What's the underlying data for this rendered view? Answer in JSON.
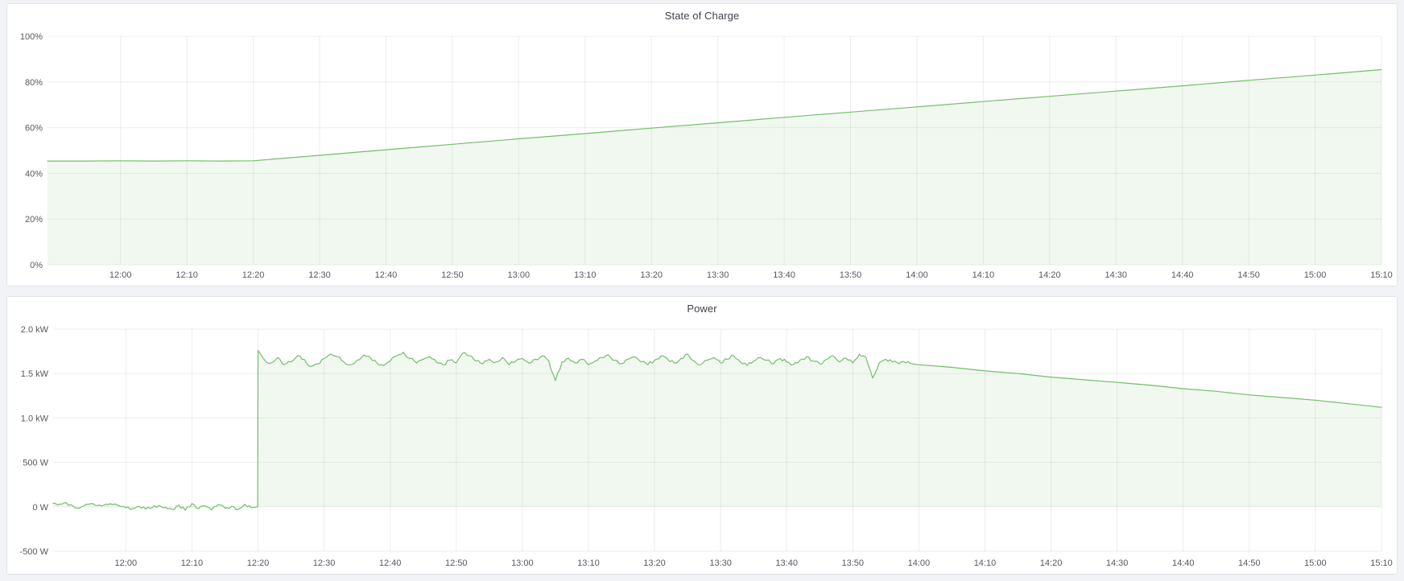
{
  "page": {
    "background": "#f2f3f6"
  },
  "colors": {
    "page_bg": "#f2f3f6",
    "panel_bg": "#ffffff",
    "panel_border": "#e2e4e9",
    "title_text": "#3f4248",
    "tick_text": "#55585e",
    "grid_line": "rgba(36,41,46,0.08)",
    "series_green": "#73BF69"
  },
  "panels": [
    {
      "id": "soc",
      "title": "State of Charge"
    },
    {
      "id": "power",
      "title": "Power"
    }
  ],
  "chart_data": [
    {
      "id": "soc",
      "type": "area",
      "title": "State of Charge",
      "xlabel": "",
      "ylabel": "",
      "x_unit": "time-of-day (minutes since 00:00)",
      "x_range_visible": [
        "11:49",
        "15:10"
      ],
      "xlim": [
        709,
        910
      ],
      "ylim": [
        0,
        100
      ],
      "grid": true,
      "legend": "none",
      "x_ticks": [
        {
          "t": 720,
          "label": "12:00"
        },
        {
          "t": 730,
          "label": "12:10"
        },
        {
          "t": 740,
          "label": "12:20"
        },
        {
          "t": 750,
          "label": "12:30"
        },
        {
          "t": 760,
          "label": "12:40"
        },
        {
          "t": 770,
          "label": "12:50"
        },
        {
          "t": 780,
          "label": "13:00"
        },
        {
          "t": 790,
          "label": "13:10"
        },
        {
          "t": 800,
          "label": "13:20"
        },
        {
          "t": 810,
          "label": "13:30"
        },
        {
          "t": 820,
          "label": "13:40"
        },
        {
          "t": 830,
          "label": "13:50"
        },
        {
          "t": 840,
          "label": "14:00"
        },
        {
          "t": 850,
          "label": "14:10"
        },
        {
          "t": 860,
          "label": "14:20"
        },
        {
          "t": 870,
          "label": "14:30"
        },
        {
          "t": 880,
          "label": "14:40"
        },
        {
          "t": 890,
          "label": "14:50"
        },
        {
          "t": 900,
          "label": "15:00"
        },
        {
          "t": 910,
          "label": "15:10"
        }
      ],
      "y_ticks": [
        {
          "v": 0,
          "label": "0%"
        },
        {
          "v": 20,
          "label": "20%"
        },
        {
          "v": 40,
          "label": "40%"
        },
        {
          "v": 60,
          "label": "60%"
        },
        {
          "v": 80,
          "label": "80%"
        },
        {
          "v": 100,
          "label": "100%"
        }
      ],
      "series": [
        {
          "name": "State of Charge",
          "color": "#73BF69",
          "fill_opacity": 0.11,
          "fill_to": 0,
          "jitter_ranges": [],
          "points": [
            [
              709,
              45.4
            ],
            [
              715,
              45.4
            ],
            [
              720,
              45.5
            ],
            [
              725,
              45.4
            ],
            [
              730,
              45.5
            ],
            [
              735,
              45.4
            ],
            [
              740,
              45.5
            ],
            [
              745,
              46.7
            ],
            [
              750,
              47.9
            ],
            [
              760,
              50.3
            ],
            [
              770,
              52.7
            ],
            [
              780,
              55.1
            ],
            [
              790,
              57.4
            ],
            [
              800,
              59.8
            ],
            [
              810,
              62.1
            ],
            [
              820,
              64.5
            ],
            [
              830,
              66.8
            ],
            [
              840,
              69.1
            ],
            [
              850,
              71.4
            ],
            [
              860,
              73.7
            ],
            [
              870,
              76.0
            ],
            [
              880,
              78.3
            ],
            [
              890,
              80.7
            ],
            [
              900,
              83.0
            ],
            [
              910,
              85.4
            ]
          ]
        }
      ]
    },
    {
      "id": "power",
      "type": "area",
      "title": "Power",
      "xlabel": "",
      "ylabel": "",
      "y_unit": "kW",
      "x_unit": "time-of-day (minutes since 00:00)",
      "x_range_visible": [
        "11:49",
        "15:10"
      ],
      "xlim": [
        709,
        910
      ],
      "ylim": [
        -0.5,
        2.0
      ],
      "grid": true,
      "legend": "none",
      "x_ticks": [
        {
          "t": 720,
          "label": "12:00"
        },
        {
          "t": 730,
          "label": "12:10"
        },
        {
          "t": 740,
          "label": "12:20"
        },
        {
          "t": 750,
          "label": "12:30"
        },
        {
          "t": 760,
          "label": "12:40"
        },
        {
          "t": 770,
          "label": "12:50"
        },
        {
          "t": 780,
          "label": "13:00"
        },
        {
          "t": 790,
          "label": "13:10"
        },
        {
          "t": 800,
          "label": "13:20"
        },
        {
          "t": 810,
          "label": "13:30"
        },
        {
          "t": 820,
          "label": "13:40"
        },
        {
          "t": 830,
          "label": "13:50"
        },
        {
          "t": 840,
          "label": "14:00"
        },
        {
          "t": 850,
          "label": "14:10"
        },
        {
          "t": 860,
          "label": "14:20"
        },
        {
          "t": 870,
          "label": "14:30"
        },
        {
          "t": 880,
          "label": "14:40"
        },
        {
          "t": 890,
          "label": "14:50"
        },
        {
          "t": 900,
          "label": "15:00"
        },
        {
          "t": 910,
          "label": "15:10"
        }
      ],
      "y_ticks": [
        {
          "v": -0.5,
          "label": "-500 W"
        },
        {
          "v": 0,
          "label": "0 W"
        },
        {
          "v": 0.5,
          "label": "500 W"
        },
        {
          "v": 1.0,
          "label": "1.0 kW"
        },
        {
          "v": 1.5,
          "label": "1.5 kW"
        },
        {
          "v": 2.0,
          "label": "2.0 kW"
        }
      ],
      "series": [
        {
          "name": "Power",
          "color": "#73BF69",
          "fill_opacity": 0.11,
          "fill_to": 0,
          "jitter_ranges": [
            [
              709,
              739.8,
              0.018
            ],
            [
              740.5,
              839,
              0.02
            ]
          ],
          "points": [
            [
              709,
              0.04
            ],
            [
              710,
              0.03
            ],
            [
              711,
              0.045
            ],
            [
              712,
              0.01
            ],
            [
              713,
              -0.015
            ],
            [
              714,
              0.03
            ],
            [
              715,
              0.035
            ],
            [
              716,
              0.02
            ],
            [
              717,
              0.03
            ],
            [
              718,
              0.025
            ],
            [
              719,
              0.01
            ],
            [
              720,
              -0.01
            ],
            [
              721,
              -0.02
            ],
            [
              722,
              0.005
            ],
            [
              723,
              -0.025
            ],
            [
              724,
              -0.01
            ],
            [
              725,
              0.015
            ],
            [
              726,
              -0.005
            ],
            [
              727,
              -0.03
            ],
            [
              728,
              0.02
            ],
            [
              729,
              -0.04
            ],
            [
              730,
              0.035
            ],
            [
              731,
              -0.02
            ],
            [
              732,
              0.01
            ],
            [
              733,
              -0.035
            ],
            [
              734,
              0.025
            ],
            [
              735,
              -0.015
            ],
            [
              736,
              0.005
            ],
            [
              737,
              -0.03
            ],
            [
              738,
              0.03
            ],
            [
              739,
              -0.01
            ],
            [
              739.95,
              0.0
            ],
            [
              740,
              1.76
            ],
            [
              741,
              1.65
            ],
            [
              742,
              1.62
            ],
            [
              743,
              1.68
            ],
            [
              744,
              1.6
            ],
            [
              745,
              1.63
            ],
            [
              746,
              1.7
            ],
            [
              747,
              1.66
            ],
            [
              748,
              1.58
            ],
            [
              749,
              1.61
            ],
            [
              750,
              1.67
            ],
            [
              751,
              1.72
            ],
            [
              752,
              1.69
            ],
            [
              753,
              1.63
            ],
            [
              754,
              1.6
            ],
            [
              755,
              1.65
            ],
            [
              756,
              1.71
            ],
            [
              757,
              1.68
            ],
            [
              758,
              1.62
            ],
            [
              759,
              1.59
            ],
            [
              760,
              1.64
            ],
            [
              761,
              1.7
            ],
            [
              762,
              1.74
            ],
            [
              763,
              1.67
            ],
            [
              764,
              1.62
            ],
            [
              765,
              1.66
            ],
            [
              766,
              1.69
            ],
            [
              767,
              1.63
            ],
            [
              768,
              1.6
            ],
            [
              769,
              1.65
            ],
            [
              770,
              1.62
            ],
            [
              771,
              1.73
            ],
            [
              772,
              1.7
            ],
            [
              773,
              1.64
            ],
            [
              774,
              1.61
            ],
            [
              775,
              1.66
            ],
            [
              776,
              1.63
            ],
            [
              777,
              1.68
            ],
            [
              778,
              1.6
            ],
            [
              779,
              1.64
            ],
            [
              780,
              1.67
            ],
            [
              781,
              1.62
            ],
            [
              782,
              1.66
            ],
            [
              783,
              1.7
            ],
            [
              784,
              1.64
            ],
            [
              785,
              1.42
            ],
            [
              786,
              1.63
            ],
            [
              787,
              1.67
            ],
            [
              788,
              1.62
            ],
            [
              789,
              1.66
            ],
            [
              790,
              1.6
            ],
            [
              791,
              1.64
            ],
            [
              792,
              1.68
            ],
            [
              793,
              1.71
            ],
            [
              794,
              1.65
            ],
            [
              795,
              1.61
            ],
            [
              796,
              1.66
            ],
            [
              797,
              1.69
            ],
            [
              798,
              1.63
            ],
            [
              799,
              1.6
            ],
            [
              800,
              1.65
            ],
            [
              801,
              1.7
            ],
            [
              802,
              1.66
            ],
            [
              803,
              1.62
            ],
            [
              804,
              1.67
            ],
            [
              805,
              1.72
            ],
            [
              806,
              1.64
            ],
            [
              807,
              1.6
            ],
            [
              808,
              1.65
            ],
            [
              809,
              1.68
            ],
            [
              810,
              1.62
            ],
            [
              811,
              1.66
            ],
            [
              812,
              1.7
            ],
            [
              813,
              1.63
            ],
            [
              814,
              1.59
            ],
            [
              815,
              1.64
            ],
            [
              816,
              1.68
            ],
            [
              817,
              1.65
            ],
            [
              818,
              1.61
            ],
            [
              819,
              1.67
            ],
            [
              820,
              1.63
            ],
            [
              821,
              1.6
            ],
            [
              822,
              1.65
            ],
            [
              823,
              1.69
            ],
            [
              824,
              1.64
            ],
            [
              825,
              1.61
            ],
            [
              826,
              1.66
            ],
            [
              827,
              1.7
            ],
            [
              828,
              1.63
            ],
            [
              829,
              1.67
            ],
            [
              830,
              1.62
            ],
            [
              831,
              1.72
            ],
            [
              832,
              1.68
            ],
            [
              833,
              1.45
            ],
            [
              834,
              1.62
            ],
            [
              835,
              1.66
            ],
            [
              836,
              1.63
            ],
            [
              837,
              1.61
            ],
            [
              838,
              1.62
            ],
            [
              839,
              1.61
            ],
            [
              840,
              1.6
            ],
            [
              845,
              1.57
            ],
            [
              850,
              1.53
            ],
            [
              855,
              1.5
            ],
            [
              860,
              1.46
            ],
            [
              865,
              1.43
            ],
            [
              870,
              1.4
            ],
            [
              875,
              1.37
            ],
            [
              880,
              1.33
            ],
            [
              885,
              1.3
            ],
            [
              890,
              1.26
            ],
            [
              895,
              1.23
            ],
            [
              900,
              1.2
            ],
            [
              905,
              1.16
            ],
            [
              910,
              1.12
            ]
          ]
        }
      ]
    }
  ]
}
